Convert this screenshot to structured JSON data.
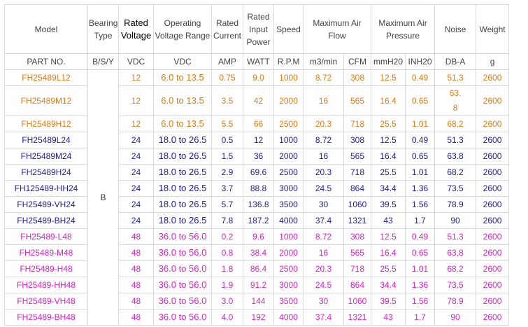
{
  "headers": [
    "Model",
    "Bearing Type",
    "Rated Voltage",
    "Operating Voltage Range",
    "Rated Current",
    "Rated Input Power",
    "Speed",
    "Maximum Air Flow",
    "Maximum Air Pressure",
    "Noise",
    "Weight"
  ],
  "units": [
    "PART NO.",
    "B/S/Y",
    "VDC",
    "VDC",
    "AMP",
    "WATT",
    "R.P.M",
    "m3/min",
    "CFM",
    "mmH20",
    "INH20",
    "DB-A",
    "g"
  ],
  "bearing": "B",
  "rows": [
    [
      "FH25489L12",
      "12",
      "6.0 to 13.5",
      "0.75",
      "9.0",
      "1000",
      "8.72",
      "308",
      "12.5",
      "0.49",
      "51.3",
      "2600"
    ],
    [
      "FH25489M12",
      "12",
      "6.0 to 13.5",
      "3.5",
      "42",
      "2000",
      "16",
      "565",
      "16.4",
      "0.65",
      "63.8",
      "2600"
    ],
    [
      "FH25489H12",
      "12",
      "6.0 to 13.5",
      "5.5",
      "66",
      "2500",
      "20.3",
      "718",
      "25.5",
      "1.01",
      "68.2",
      "2600"
    ],
    [
      "FH25489L24",
      "24",
      "18.0 to 26.5",
      "0.5",
      "12",
      "1000",
      "8.72",
      "308",
      "12.5",
      "0.49",
      "51.3",
      "2600"
    ],
    [
      "FH25489M24",
      "24",
      "18.0 to 26.5",
      "1.5",
      "36",
      "2000",
      "16",
      "565",
      "16.4",
      "0.65",
      "63.8",
      "2600"
    ],
    [
      "FH25489H24",
      "24",
      "18.0 to 26.5",
      "2.9",
      "69.6",
      "2500",
      "20.3",
      "718",
      "25.5",
      "1.01",
      "68.2",
      "2600"
    ],
    [
      "FH125489-HH24",
      "24",
      "18.0 to 26.5",
      "3.7",
      "88.8",
      "3000",
      "24.5",
      "864",
      "34.4",
      "1.36",
      "73.5",
      "2600"
    ],
    [
      "FH25489-VH24",
      "24",
      "18.0 to 26.5",
      "5.7",
      "136.8",
      "3500",
      "30",
      "1060",
      "39.5",
      "1.56",
      "78.9",
      "2600"
    ],
    [
      "FH25489-BH24",
      "24",
      "18.0 to 26.5",
      "7.8",
      "187.2",
      "4000",
      "37.4",
      "1321",
      "43",
      "1.7",
      "90",
      "2600"
    ],
    [
      "FH25489-L48",
      "48",
      "36.0 to 56.0",
      "0.2",
      "9.6",
      "1000",
      "8.72",
      "308",
      "12.5",
      "0.49",
      "51.3",
      "2600"
    ],
    [
      "FH25489-M48",
      "48",
      "36.0 to 56.0",
      "0.8",
      "38.4",
      "2000",
      "16",
      "565",
      "16.4",
      "0.65",
      "63.8",
      "2600"
    ],
    [
      "FH25489-H48",
      "48",
      "36.0 to 56.0",
      "1.8",
      "86.4",
      "2500",
      "20.3",
      "718",
      "25.5",
      "1.01",
      "68.2",
      "2600"
    ],
    [
      "FH25489-HH48",
      "48",
      "36.0 to 56.0",
      "1.9",
      "91.2",
      "3000",
      "24.5",
      "864",
      "34.4",
      "1.36",
      "73.5",
      "2600"
    ],
    [
      "FH25489-VH48",
      "48",
      "36.0 to 56.0",
      "3.0",
      "144",
      "3500",
      "30",
      "1060",
      "39.5",
      "1.56",
      "78.9",
      "2600"
    ],
    [
      "FH25489-BH48",
      "48",
      "36.0 to 56.0",
      "4.0",
      "192",
      "4000",
      "37.4",
      "1321",
      "43",
      "1.7",
      "90",
      "2600"
    ]
  ]
}
